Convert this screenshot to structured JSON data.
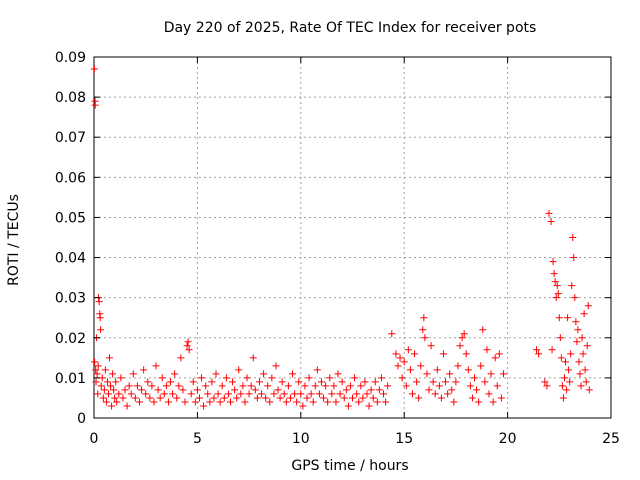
{
  "chart_data": {
    "type": "scatter",
    "title": "Day 220 of 2025, Rate Of TEC Index for receiver pots",
    "xlabel": "GPS time / hours",
    "ylabel": "ROTI / TECUs",
    "xlim": [
      0,
      25
    ],
    "ylim": [
      0,
      0.09
    ],
    "x_ticks": [
      0,
      5,
      10,
      15,
      20,
      25
    ],
    "x_tick_labels": [
      "0",
      "5",
      "10",
      "15",
      "20",
      "25"
    ],
    "y_ticks": [
      0,
      0.01,
      0.02,
      0.03,
      0.04,
      0.05,
      0.06,
      0.07,
      0.08,
      0.09
    ],
    "y_tick_labels": [
      "0",
      "0.01",
      "0.02",
      "0.03",
      "0.04",
      "0.05",
      "0.06",
      "0.07",
      "0.08",
      "0.09"
    ],
    "grid": true,
    "marker": "+",
    "color": "#ff0000",
    "series": [
      {
        "points": [
          [
            0.02,
            0.087
          ],
          [
            0.05,
            0.079
          ],
          [
            0.06,
            0.078
          ],
          [
            0.03,
            0.014
          ],
          [
            0.08,
            0.012
          ],
          [
            0.1,
            0.009
          ],
          [
            0.12,
            0.02
          ],
          [
            0.15,
            0.011
          ],
          [
            0.2,
            0.013
          ],
          [
            0.22,
            0.03
          ],
          [
            0.25,
            0.029
          ],
          [
            0.28,
            0.026
          ],
          [
            0.3,
            0.025
          ],
          [
            0.32,
            0.022
          ],
          [
            0.18,
            0.006
          ],
          [
            0.35,
            0.008
          ],
          [
            0.4,
            0.01
          ],
          [
            0.45,
            0.005
          ],
          [
            0.5,
            0.007
          ],
          [
            0.55,
            0.012
          ],
          [
            0.6,
            0.004
          ],
          [
            0.65,
            0.009
          ],
          [
            0.7,
            0.006
          ],
          [
            0.75,
            0.015
          ],
          [
            0.8,
            0.008
          ],
          [
            0.85,
            0.003
          ],
          [
            0.9,
            0.011
          ],
          [
            0.95,
            0.007
          ],
          [
            1.0,
            0.005
          ],
          [
            1.05,
            0.009
          ],
          [
            1.1,
            0.004
          ],
          [
            1.2,
            0.006
          ],
          [
            1.3,
            0.01
          ],
          [
            1.4,
            0.005
          ],
          [
            1.5,
            0.007
          ],
          [
            1.6,
            0.003
          ],
          [
            1.7,
            0.008
          ],
          [
            1.8,
            0.006
          ],
          [
            1.9,
            0.011
          ],
          [
            2.0,
            0.005
          ],
          [
            2.1,
            0.008
          ],
          [
            2.2,
            0.004
          ],
          [
            2.3,
            0.007
          ],
          [
            2.4,
            0.012
          ],
          [
            2.5,
            0.006
          ],
          [
            2.6,
            0.009
          ],
          [
            2.7,
            0.005
          ],
          [
            2.8,
            0.008
          ],
          [
            2.9,
            0.004
          ],
          [
            3.0,
            0.013
          ],
          [
            3.1,
            0.007
          ],
          [
            3.2,
            0.005
          ],
          [
            3.3,
            0.01
          ],
          [
            3.4,
            0.006
          ],
          [
            3.5,
            0.008
          ],
          [
            3.6,
            0.004
          ],
          [
            3.7,
            0.009
          ],
          [
            3.8,
            0.006
          ],
          [
            3.9,
            0.011
          ],
          [
            4.0,
            0.005
          ],
          [
            4.1,
            0.008
          ],
          [
            4.2,
            0.015
          ],
          [
            4.3,
            0.007
          ],
          [
            4.4,
            0.004
          ],
          [
            4.5,
            0.018
          ],
          [
            4.55,
            0.019
          ],
          [
            4.6,
            0.017
          ],
          [
            4.7,
            0.006
          ],
          [
            4.8,
            0.009
          ],
          [
            4.9,
            0.004
          ],
          [
            5.0,
            0.007
          ],
          [
            5.1,
            0.005
          ],
          [
            5.2,
            0.01
          ],
          [
            5.3,
            0.003
          ],
          [
            5.4,
            0.008
          ],
          [
            5.5,
            0.006
          ],
          [
            5.6,
            0.004
          ],
          [
            5.7,
            0.009
          ],
          [
            5.8,
            0.005
          ],
          [
            5.9,
            0.011
          ],
          [
            6.0,
            0.006
          ],
          [
            6.1,
            0.004
          ],
          [
            6.2,
            0.008
          ],
          [
            6.3,
            0.005
          ],
          [
            6.4,
            0.01
          ],
          [
            6.5,
            0.006
          ],
          [
            6.6,
            0.004
          ],
          [
            6.7,
            0.009
          ],
          [
            6.8,
            0.007
          ],
          [
            6.9,
            0.005
          ],
          [
            7.0,
            0.012
          ],
          [
            7.1,
            0.006
          ],
          [
            7.2,
            0.008
          ],
          [
            7.3,
            0.004
          ],
          [
            7.4,
            0.01
          ],
          [
            7.5,
            0.006
          ],
          [
            7.6,
            0.008
          ],
          [
            7.7,
            0.015
          ],
          [
            7.8,
            0.007
          ],
          [
            7.9,
            0.005
          ],
          [
            8.0,
            0.009
          ],
          [
            8.1,
            0.006
          ],
          [
            8.2,
            0.011
          ],
          [
            8.3,
            0.005
          ],
          [
            8.4,
            0.008
          ],
          [
            8.5,
            0.004
          ],
          [
            8.6,
            0.01
          ],
          [
            8.7,
            0.006
          ],
          [
            8.8,
            0.013
          ],
          [
            8.9,
            0.007
          ],
          [
            9.0,
            0.005
          ],
          [
            9.1,
            0.009
          ],
          [
            9.2,
            0.006
          ],
          [
            9.3,
            0.004
          ],
          [
            9.4,
            0.008
          ],
          [
            9.5,
            0.005
          ],
          [
            9.6,
            0.011
          ],
          [
            9.7,
            0.006
          ],
          [
            9.8,
            0.004
          ],
          [
            9.9,
            0.009
          ],
          [
            10.0,
            0.006
          ],
          [
            10.1,
            0.003
          ],
          [
            10.2,
            0.008
          ],
          [
            10.3,
            0.005
          ],
          [
            10.4,
            0.01
          ],
          [
            10.5,
            0.006
          ],
          [
            10.6,
            0.004
          ],
          [
            10.7,
            0.008
          ],
          [
            10.8,
            0.012
          ],
          [
            10.9,
            0.006
          ],
          [
            11.0,
            0.009
          ],
          [
            11.1,
            0.005
          ],
          [
            11.2,
            0.008
          ],
          [
            11.3,
            0.004
          ],
          [
            11.4,
            0.01
          ],
          [
            11.5,
            0.006
          ],
          [
            11.6,
            0.008
          ],
          [
            11.7,
            0.004
          ],
          [
            11.8,
            0.011
          ],
          [
            11.9,
            0.006
          ],
          [
            12.0,
            0.009
          ],
          [
            12.1,
            0.005
          ],
          [
            12.2,
            0.007
          ],
          [
            12.3,
            0.003
          ],
          [
            12.4,
            0.008
          ],
          [
            12.5,
            0.005
          ],
          [
            12.6,
            0.01
          ],
          [
            12.7,
            0.006
          ],
          [
            12.8,
            0.004
          ],
          [
            12.9,
            0.008
          ],
          [
            13.0,
            0.005
          ],
          [
            13.1,
            0.009
          ],
          [
            13.2,
            0.006
          ],
          [
            13.3,
            0.003
          ],
          [
            13.4,
            0.007
          ],
          [
            13.5,
            0.005
          ],
          [
            13.6,
            0.009
          ],
          [
            13.7,
            0.004
          ],
          [
            13.8,
            0.007
          ],
          [
            13.9,
            0.01
          ],
          [
            14.0,
            0.006
          ],
          [
            14.1,
            0.004
          ],
          [
            14.2,
            0.008
          ],
          [
            14.4,
            0.021
          ],
          [
            14.6,
            0.016
          ],
          [
            14.7,
            0.013
          ],
          [
            14.8,
            0.015
          ],
          [
            14.9,
            0.01
          ],
          [
            15.0,
            0.014
          ],
          [
            15.1,
            0.008
          ],
          [
            15.2,
            0.017
          ],
          [
            15.3,
            0.012
          ],
          [
            15.4,
            0.006
          ],
          [
            15.5,
            0.016
          ],
          [
            15.6,
            0.009
          ],
          [
            15.7,
            0.005
          ],
          [
            15.8,
            0.013
          ],
          [
            15.9,
            0.022
          ],
          [
            15.95,
            0.025
          ],
          [
            16.0,
            0.02
          ],
          [
            16.1,
            0.011
          ],
          [
            16.2,
            0.007
          ],
          [
            16.3,
            0.018
          ],
          [
            16.4,
            0.009
          ],
          [
            16.5,
            0.006
          ],
          [
            16.6,
            0.012
          ],
          [
            16.7,
            0.008
          ],
          [
            16.8,
            0.005
          ],
          [
            16.9,
            0.016
          ],
          [
            17.0,
            0.009
          ],
          [
            17.1,
            0.006
          ],
          [
            17.2,
            0.011
          ],
          [
            17.3,
            0.007
          ],
          [
            17.4,
            0.004
          ],
          [
            17.5,
            0.009
          ],
          [
            17.6,
            0.013
          ],
          [
            17.7,
            0.018
          ],
          [
            17.8,
            0.02
          ],
          [
            17.9,
            0.021
          ],
          [
            18.0,
            0.016
          ],
          [
            18.1,
            0.012
          ],
          [
            18.2,
            0.008
          ],
          [
            18.3,
            0.005
          ],
          [
            18.4,
            0.01
          ],
          [
            18.5,
            0.007
          ],
          [
            18.6,
            0.004
          ],
          [
            18.7,
            0.013
          ],
          [
            18.8,
            0.022
          ],
          [
            18.9,
            0.009
          ],
          [
            19.0,
            0.017
          ],
          [
            19.1,
            0.006
          ],
          [
            19.2,
            0.011
          ],
          [
            19.3,
            0.004
          ],
          [
            19.4,
            0.015
          ],
          [
            19.5,
            0.008
          ],
          [
            19.6,
            0.016
          ],
          [
            19.7,
            0.005
          ],
          [
            19.8,
            0.011
          ],
          [
            21.4,
            0.017
          ],
          [
            21.5,
            0.016
          ],
          [
            21.8,
            0.009
          ],
          [
            21.9,
            0.008
          ],
          [
            22.0,
            0.051
          ],
          [
            22.1,
            0.049
          ],
          [
            22.15,
            0.017
          ],
          [
            22.2,
            0.039
          ],
          [
            22.25,
            0.036
          ],
          [
            22.3,
            0.034
          ],
          [
            22.35,
            0.03
          ],
          [
            22.4,
            0.033
          ],
          [
            22.45,
            0.031
          ],
          [
            22.5,
            0.025
          ],
          [
            22.55,
            0.02
          ],
          [
            22.6,
            0.015
          ],
          [
            22.65,
            0.008
          ],
          [
            22.7,
            0.005
          ],
          [
            22.75,
            0.01
          ],
          [
            22.8,
            0.014
          ],
          [
            22.85,
            0.007
          ],
          [
            22.9,
            0.025
          ],
          [
            22.95,
            0.012
          ],
          [
            23.0,
            0.009
          ],
          [
            23.05,
            0.016
          ],
          [
            23.1,
            0.033
          ],
          [
            23.15,
            0.045
          ],
          [
            23.2,
            0.04
          ],
          [
            23.25,
            0.03
          ],
          [
            23.3,
            0.024
          ],
          [
            23.35,
            0.019
          ],
          [
            23.4,
            0.022
          ],
          [
            23.45,
            0.014
          ],
          [
            23.5,
            0.011
          ],
          [
            23.55,
            0.008
          ],
          [
            23.6,
            0.02
          ],
          [
            23.65,
            0.016
          ],
          [
            23.7,
            0.026
          ],
          [
            23.75,
            0.012
          ],
          [
            23.8,
            0.009
          ],
          [
            23.85,
            0.018
          ],
          [
            23.9,
            0.028
          ],
          [
            23.95,
            0.007
          ]
        ]
      }
    ]
  }
}
